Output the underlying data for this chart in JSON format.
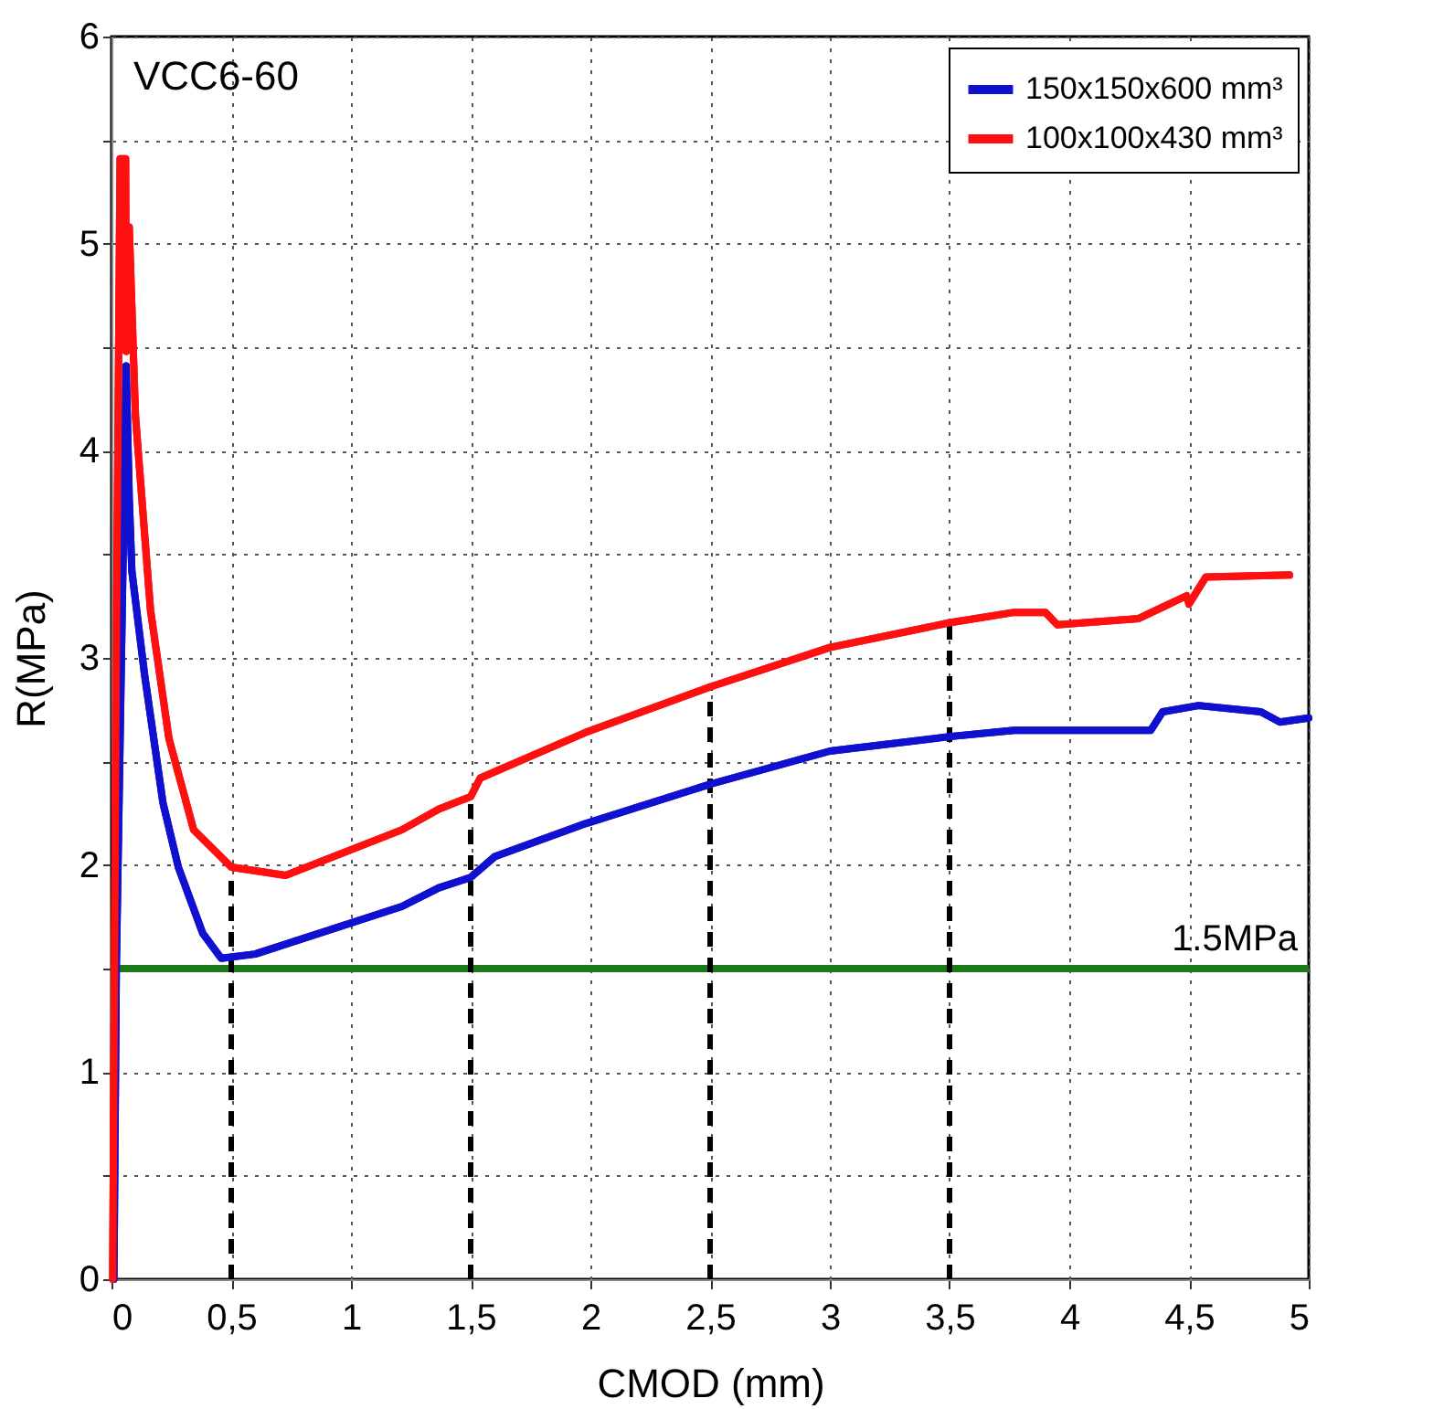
{
  "chart_data": {
    "type": "line",
    "annotations": [
      "VCC6-60"
    ],
    "xlabel": "CMOD (mm)",
    "ylabel": "R(MPa)",
    "xlim": [
      0,
      5
    ],
    "ylim": [
      0,
      6
    ],
    "xticks": [
      0,
      {
        "value": 0.5,
        "label": "0,5"
      },
      1,
      {
        "value": 1.5,
        "label": "1,5"
      },
      2,
      {
        "value": 2.5,
        "label": "2,5"
      },
      3,
      {
        "value": 3.5,
        "label": "3,5"
      },
      4,
      {
        "value": 4.5,
        "label": "4,5"
      },
      5
    ],
    "yticks": [
      0,
      {
        "value": 0.5,
        "label": null
      },
      1,
      {
        "value": 1.5,
        "label": null
      },
      2,
      {
        "value": 2.5,
        "label": null
      },
      3,
      {
        "value": 3.5,
        "label": null
      },
      4,
      {
        "value": 4.5,
        "label": null
      },
      5,
      {
        "value": 5.5,
        "label": null
      },
      6
    ],
    "grid": true,
    "legend": "top right",
    "marker": "none",
    "line_style": "solid",
    "series": [
      {
        "name": "150x150x600 mm³",
        "color": "#1010d0",
        "x": [
          0.01,
          0.02,
          0.05,
          0.061,
          0.074,
          0.085,
          0.138,
          0.215,
          0.279,
          0.381,
          0.458,
          0.6,
          1.213,
          1.367,
          1.5,
          1.6,
          1.98,
          2.5,
          3.0,
          3.5,
          3.77,
          4.34,
          4.39,
          4.54,
          4.8,
          4.88,
          5.0
        ],
        "values": [
          0,
          1.5,
          3.6,
          4.41,
          3.77,
          3.42,
          2.92,
          2.3,
          1.99,
          1.67,
          1.55,
          1.57,
          1.8,
          1.89,
          1.94,
          2.04,
          2.2,
          2.39,
          2.55,
          2.62,
          2.65,
          2.65,
          2.74,
          2.77,
          2.74,
          2.69,
          2.71
        ]
      },
      {
        "name": "100x100x430 mm³",
        "color": "#ff1010",
        "x": [
          0.005,
          0.02,
          0.036,
          0.059,
          0.061,
          0.074,
          0.1,
          0.163,
          0.24,
          0.343,
          0.5,
          0.727,
          1.213,
          1.367,
          1.5,
          1.54,
          1.98,
          2.5,
          3.0,
          3.5,
          3.77,
          3.9,
          3.95,
          4.29,
          4.49,
          4.5,
          4.57,
          4.92
        ],
        "values": [
          0,
          3.0,
          5.41,
          5.41,
          4.48,
          5.08,
          4.17,
          3.23,
          2.61,
          2.17,
          1.99,
          1.95,
          2.17,
          2.27,
          2.33,
          2.42,
          2.64,
          2.86,
          3.05,
          3.17,
          3.22,
          3.22,
          3.16,
          3.19,
          3.3,
          3.26,
          3.39,
          3.4
        ]
      }
    ],
    "ref_lines": [
      {
        "axis": "y",
        "value": 1.5,
        "label": "1.5MPa",
        "color": "#1a7a1a",
        "line_style": "solid"
      },
      {
        "axis": "x",
        "value": 0.5,
        "label": null,
        "color": "#000000",
        "line_style": "dashed"
      },
      {
        "axis": "x",
        "value": 1.5,
        "label": null,
        "color": "#000000",
        "line_style": "dashed"
      },
      {
        "axis": "x",
        "value": 2.5,
        "label": null,
        "color": "#000000",
        "line_style": "dashed"
      },
      {
        "axis": "x",
        "value": 3.5,
        "label": null,
        "color": "#000000",
        "line_style": "dashed"
      }
    ]
  }
}
